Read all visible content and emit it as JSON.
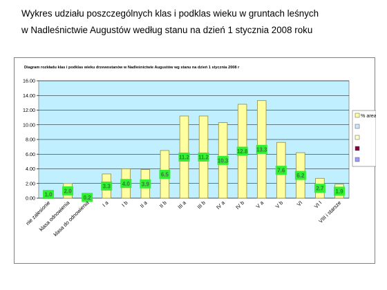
{
  "heading": {
    "line1": "Wykres udziału  poszczególnych klas i podklas wieku w  gruntach  leśnych",
    "line2": "w  Nadleśnictwie Augustów według stanu na dzień 1 stycznia 2008 roku"
  },
  "chart_data": {
    "type": "bar",
    "title": "Diagram rozkładu klas  i podklas wieku drzewostanów w Nadleśnictwie Augustów wg stanu na dzień 1 stycznia 2008 r",
    "categories": [
      "nie zalesionie",
      "klasa odnowienia",
      "klasa do odnowienia",
      "I a",
      "I b",
      "II a",
      "II b",
      "III a",
      "III b",
      "IV a",
      "IV b",
      "V a",
      "V b",
      "VI",
      "VI I",
      "VIII i starsze"
    ],
    "series": [
      {
        "name": "% area",
        "values": [
          1.0,
          2.0,
          0.2,
          3.3,
          4.0,
          3.9,
          6.5,
          11.2,
          11.2,
          10.3,
          12.8,
          13.3,
          7.6,
          6.2,
          2.7,
          1.9
        ]
      }
    ],
    "data_labels": [
      "1.0",
      "2.0",
      "0.2",
      "3.3",
      "4.0",
      "3.9",
      "6.5",
      "11.2",
      "11.2",
      "10.3",
      "12.8",
      "13.3",
      "7.6",
      "6.2",
      "2.7",
      "1.9"
    ],
    "y_ticks": [
      "0.00",
      "2.00",
      "4.00",
      "6.00",
      "8.00",
      "10.00",
      "12.00",
      "14.00",
      "16.00"
    ],
    "ylim": [
      0,
      16
    ],
    "grid": true,
    "legend_position": "right",
    "legend_items": [
      {
        "label": "% area",
        "color": "#ffffa0"
      },
      {
        "label": "",
        "color": "#cce4ff"
      },
      {
        "label": "",
        "color": "#ffffcc"
      },
      {
        "label": "",
        "color": "#800040"
      },
      {
        "label": "",
        "color": "#9999ff"
      }
    ],
    "colors": {
      "plot_background": "#c0f0ff",
      "bar_fill": "#ffffa0",
      "bar_stroke": "#8a8a4a",
      "label_background": "#33ee33",
      "label_text": "#2e7d32"
    }
  }
}
